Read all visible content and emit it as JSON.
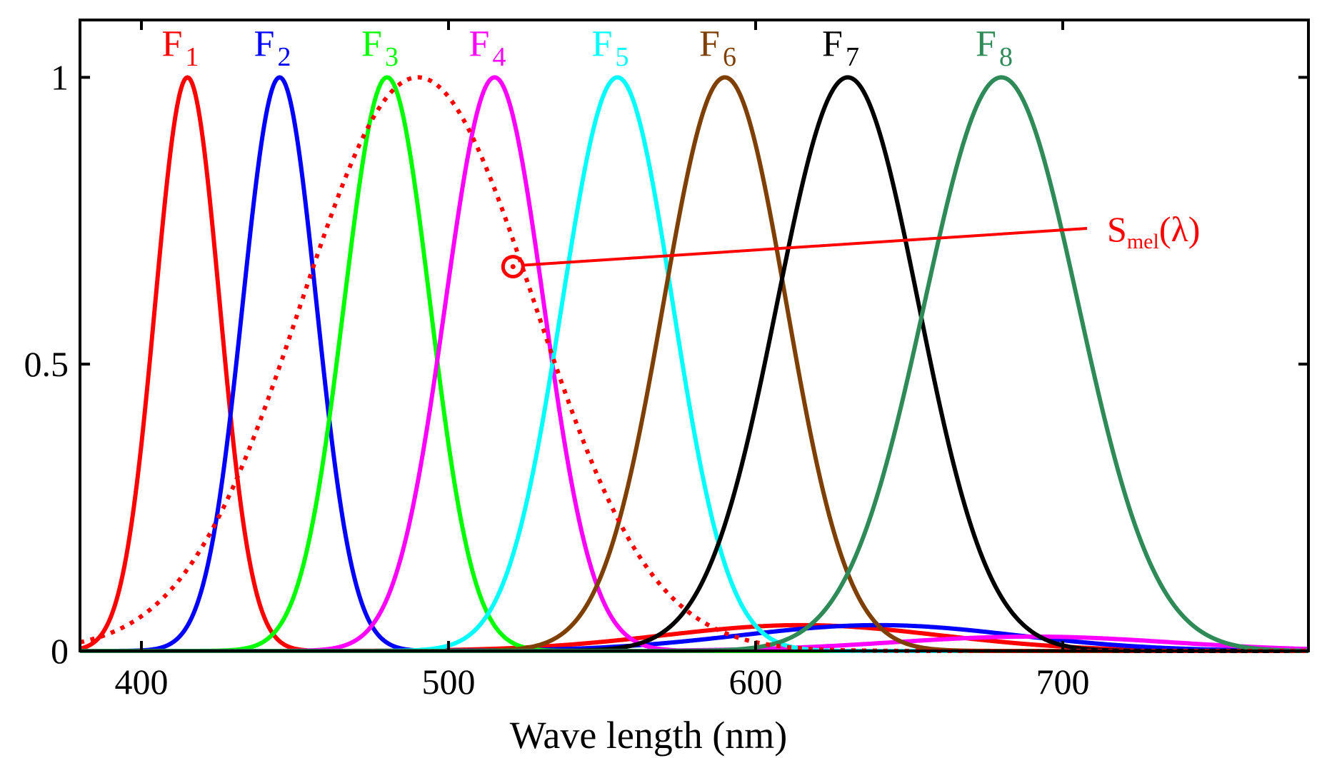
{
  "chart_data": {
    "type": "line",
    "title": "",
    "xlabel": "Wave length (nm)",
    "ylabel": "",
    "xlim": [
      380,
      780
    ],
    "ylim": [
      0,
      1.1
    ],
    "xticks": [
      400,
      500,
      600,
      700
    ],
    "yticks": [
      0,
      0.5,
      1
    ],
    "ytick_labels": [
      "0",
      "0.5",
      "1"
    ],
    "grid": false,
    "series": [
      {
        "name": "F1",
        "sub": "1",
        "color": "#ff0000",
        "peak": 415,
        "width": 10.5,
        "sideband": {
          "center": 615,
          "width": 45,
          "height": 0.045
        }
      },
      {
        "name": "F2",
        "sub": "2",
        "color": "#0000ff",
        "peak": 445,
        "width": 12,
        "sideband": {
          "center": 640,
          "width": 45,
          "height": 0.045
        }
      },
      {
        "name": "F3",
        "sub": "3",
        "color": "#00ff00",
        "peak": 480,
        "width": 14,
        "sideband": null
      },
      {
        "name": "F4",
        "sub": "4",
        "color": "#ff00ff",
        "peak": 515,
        "width": 16,
        "sideband": {
          "center": 690,
          "width": 45,
          "height": 0.025
        }
      },
      {
        "name": "F5",
        "sub": "5",
        "color": "#00ffff",
        "peak": 555,
        "width": 18,
        "sideband": null
      },
      {
        "name": "F6",
        "sub": "6",
        "color": "#7f3f00",
        "peak": 590,
        "width": 20,
        "sideband": null
      },
      {
        "name": "F7",
        "sub": "7",
        "color": "#000000",
        "peak": 630,
        "width": 23,
        "sideband": null
      },
      {
        "name": "F8",
        "sub": "8",
        "color": "#2e8b57",
        "peak": 680,
        "width": 25,
        "sideband": null
      }
    ],
    "melanopsin": {
      "name": "Smel(λ)",
      "main": "S",
      "sub": "mel",
      "suffix": "(λ)",
      "color": "#ff0000",
      "style": "dotted",
      "peak": 490,
      "width": 38,
      "annotation_point": [
        521,
        0.67
      ]
    }
  }
}
